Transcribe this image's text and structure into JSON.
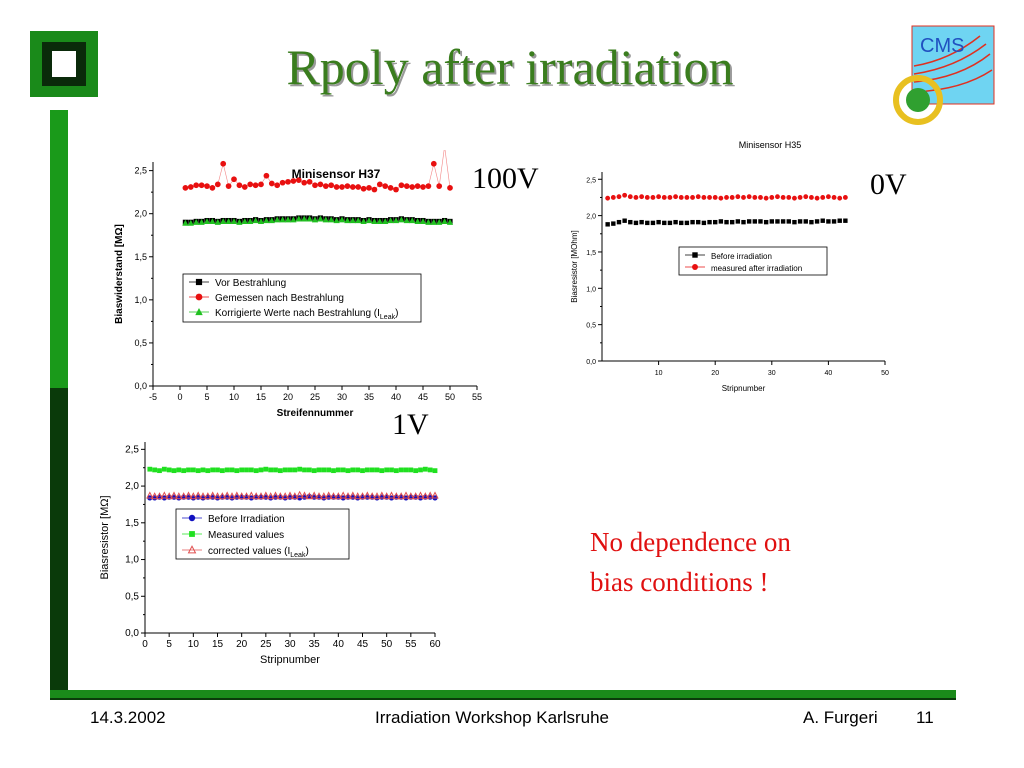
{
  "slide": {
    "title": "Rpoly after irradiation",
    "labels": {
      "v100": "100V",
      "v0": "0V",
      "v1": "1V"
    },
    "conclusion": [
      "No dependence on",
      "bias conditions !"
    ],
    "footer": {
      "date": "14.3.2002",
      "event": "Irradiation Workshop Karlsruhe",
      "author": "A. Furgeri",
      "page": "11"
    },
    "logos": {
      "cms": "CMS"
    },
    "colors": {
      "title": "#3a7d1e",
      "frame": "#1a8a1a",
      "accent_text": "#e01010"
    }
  },
  "chart_data": [
    {
      "id": "h37",
      "type": "scatter",
      "title": "Minisensor H37",
      "xlabel": "Streifennummer",
      "ylabel": "Biaswiderstand [MΩ]",
      "xlim": [
        -5,
        55
      ],
      "ylim": [
        0,
        2.6
      ],
      "xticks": [
        -5,
        0,
        5,
        10,
        15,
        20,
        25,
        30,
        35,
        40,
        45,
        50,
        55
      ],
      "yticks": [
        0.0,
        0.5,
        1.0,
        1.5,
        2.0,
        2.5
      ],
      "tick_labels_y": [
        "0,0",
        "0,5",
        "1,0",
        "1,5",
        "2,0",
        "2,5"
      ],
      "legend": "center-left",
      "series": [
        {
          "name": "Vor Bestrahlung",
          "marker": "square",
          "color": "#000000",
          "line": false,
          "x": [
            1,
            2,
            3,
            4,
            5,
            6,
            7,
            8,
            9,
            10,
            11,
            12,
            13,
            14,
            15,
            16,
            17,
            18,
            19,
            20,
            21,
            22,
            23,
            24,
            25,
            26,
            27,
            28,
            29,
            30,
            31,
            32,
            33,
            34,
            35,
            36,
            37,
            38,
            39,
            40,
            41,
            42,
            43,
            44,
            45,
            46,
            47,
            48,
            49,
            50
          ],
          "y": [
            1.9,
            1.9,
            1.91,
            1.91,
            1.92,
            1.92,
            1.91,
            1.92,
            1.92,
            1.92,
            1.91,
            1.92,
            1.92,
            1.93,
            1.92,
            1.93,
            1.93,
            1.94,
            1.94,
            1.94,
            1.94,
            1.95,
            1.95,
            1.95,
            1.94,
            1.95,
            1.94,
            1.94,
            1.93,
            1.94,
            1.93,
            1.93,
            1.93,
            1.92,
            1.93,
            1.92,
            1.92,
            1.92,
            1.93,
            1.93,
            1.94,
            1.93,
            1.93,
            1.92,
            1.92,
            1.91,
            1.91,
            1.91,
            1.92,
            1.91
          ]
        },
        {
          "name": "Gemessen nach Bestrahlung",
          "marker": "circle",
          "color": "#e81010",
          "line": true,
          "x": [
            1,
            2,
            3,
            4,
            5,
            6,
            7,
            8,
            9,
            10,
            11,
            12,
            13,
            14,
            15,
            16,
            17,
            18,
            19,
            20,
            21,
            22,
            23,
            24,
            25,
            26,
            27,
            28,
            29,
            30,
            31,
            32,
            33,
            34,
            35,
            36,
            37,
            38,
            39,
            40,
            41,
            42,
            43,
            44,
            45,
            46,
            47,
            48,
            49,
            50
          ],
          "y": [
            2.3,
            2.31,
            2.33,
            2.33,
            2.32,
            2.3,
            2.34,
            2.58,
            2.32,
            2.4,
            2.33,
            2.31,
            2.34,
            2.33,
            2.34,
            2.44,
            2.35,
            2.33,
            2.36,
            2.37,
            2.38,
            2.39,
            2.36,
            2.37,
            2.33,
            2.34,
            2.32,
            2.33,
            2.31,
            2.31,
            2.32,
            2.31,
            2.31,
            2.29,
            2.3,
            2.28,
            2.34,
            2.32,
            2.3,
            2.28,
            2.33,
            2.32,
            2.31,
            2.32,
            2.31,
            2.32,
            2.58,
            2.32,
            2.78,
            2.3
          ]
        },
        {
          "name": "Korrigierte Werte nach Bestrahlung (I",
          "name_sub": "Leak",
          "name_tail": ")",
          "marker": "triangle",
          "color": "#20c020",
          "line": false,
          "x": [
            1,
            2,
            3,
            4,
            5,
            6,
            7,
            8,
            9,
            10,
            11,
            12,
            13,
            14,
            15,
            16,
            17,
            18,
            19,
            20,
            21,
            22,
            23,
            24,
            25,
            26,
            27,
            28,
            29,
            30,
            31,
            32,
            33,
            34,
            35,
            36,
            37,
            38,
            39,
            40,
            41,
            42,
            43,
            44,
            45,
            46,
            47,
            48,
            49,
            50
          ],
          "y": [
            1.89,
            1.89,
            1.9,
            1.9,
            1.91,
            1.91,
            1.9,
            1.91,
            1.91,
            1.91,
            1.9,
            1.91,
            1.91,
            1.92,
            1.91,
            1.92,
            1.92,
            1.93,
            1.93,
            1.93,
            1.93,
            1.94,
            1.94,
            1.94,
            1.93,
            1.94,
            1.93,
            1.93,
            1.92,
            1.93,
            1.92,
            1.92,
            1.92,
            1.91,
            1.92,
            1.91,
            1.91,
            1.91,
            1.92,
            1.92,
            1.93,
            1.92,
            1.92,
            1.91,
            1.91,
            1.9,
            1.9,
            1.9,
            1.91,
            1.9
          ]
        }
      ]
    },
    {
      "id": "h35",
      "type": "scatter",
      "title": "Minisensor H35",
      "xlabel": "Stripnumber",
      "ylabel": "Biasresistor [MOhm]",
      "xlim": [
        0,
        50
      ],
      "ylim": [
        0,
        2.6
      ],
      "xticks": [
        10,
        20,
        30,
        40,
        50
      ],
      "yticks": [
        0.0,
        0.5,
        1.0,
        1.5,
        2.0,
        2.5
      ],
      "tick_labels_y": [
        "0,0",
        "0,5",
        "1,0",
        "1,5",
        "2,0",
        "2,5"
      ],
      "legend": "center-right",
      "series": [
        {
          "name": "Before irradiation",
          "marker": "square",
          "color": "#000000",
          "line": false,
          "x": [
            1,
            2,
            3,
            4,
            5,
            6,
            7,
            8,
            9,
            10,
            11,
            12,
            13,
            14,
            15,
            16,
            17,
            18,
            19,
            20,
            21,
            22,
            23,
            24,
            25,
            26,
            27,
            28,
            29,
            30,
            31,
            32,
            33,
            34,
            35,
            36,
            37,
            38,
            39,
            40,
            41,
            42,
            43
          ],
          "y": [
            1.88,
            1.89,
            1.91,
            1.93,
            1.91,
            1.9,
            1.91,
            1.9,
            1.9,
            1.91,
            1.9,
            1.9,
            1.91,
            1.9,
            1.9,
            1.91,
            1.91,
            1.9,
            1.91,
            1.91,
            1.92,
            1.91,
            1.91,
            1.92,
            1.91,
            1.92,
            1.92,
            1.92,
            1.91,
            1.92,
            1.92,
            1.92,
            1.92,
            1.91,
            1.92,
            1.92,
            1.91,
            1.92,
            1.93,
            1.92,
            1.92,
            1.93,
            1.93
          ]
        },
        {
          "name": "measured after irradiation",
          "marker": "circle",
          "color": "#e81010",
          "line": false,
          "x": [
            1,
            2,
            3,
            4,
            5,
            6,
            7,
            8,
            9,
            10,
            11,
            12,
            13,
            14,
            15,
            16,
            17,
            18,
            19,
            20,
            21,
            22,
            23,
            24,
            25,
            26,
            27,
            28,
            29,
            30,
            31,
            32,
            33,
            34,
            35,
            36,
            37,
            38,
            39,
            40,
            41,
            42,
            43
          ],
          "y": [
            2.24,
            2.25,
            2.26,
            2.28,
            2.26,
            2.25,
            2.26,
            2.25,
            2.25,
            2.26,
            2.25,
            2.25,
            2.26,
            2.25,
            2.25,
            2.25,
            2.26,
            2.25,
            2.25,
            2.25,
            2.24,
            2.25,
            2.25,
            2.26,
            2.25,
            2.26,
            2.25,
            2.25,
            2.24,
            2.25,
            2.26,
            2.25,
            2.25,
            2.24,
            2.25,
            2.26,
            2.25,
            2.24,
            2.25,
            2.26,
            2.25,
            2.24,
            2.25
          ]
        }
      ]
    },
    {
      "id": "v1",
      "type": "scatter",
      "title": "",
      "xlabel": "Stripnumber",
      "ylabel": "Biasresistor [MΩ]",
      "xlim": [
        0,
        60
      ],
      "ylim": [
        0,
        2.6
      ],
      "xticks": [
        0,
        5,
        10,
        15,
        20,
        25,
        30,
        35,
        40,
        45,
        50,
        55,
        60
      ],
      "yticks": [
        0.0,
        0.5,
        1.0,
        1.5,
        2.0,
        2.5
      ],
      "tick_labels_y": [
        "0,0",
        "0,5",
        "1,0",
        "1,5",
        "2,0",
        "2,5"
      ],
      "legend": "center-left",
      "series": [
        {
          "name": "Before Irradiation",
          "marker": "circle",
          "color": "#1010c0",
          "line": true,
          "x": [
            1,
            2,
            3,
            4,
            5,
            6,
            7,
            8,
            9,
            10,
            11,
            12,
            13,
            14,
            15,
            16,
            17,
            18,
            19,
            20,
            21,
            22,
            23,
            24,
            25,
            26,
            27,
            28,
            29,
            30,
            31,
            32,
            33,
            34,
            35,
            36,
            37,
            38,
            39,
            40,
            41,
            42,
            43,
            44,
            45,
            46,
            47,
            48,
            49,
            50,
            51,
            52,
            53,
            54,
            55,
            56,
            57,
            58,
            59,
            60
          ],
          "y": [
            1.84,
            1.84,
            1.85,
            1.84,
            1.85,
            1.85,
            1.84,
            1.85,
            1.85,
            1.84,
            1.85,
            1.84,
            1.85,
            1.85,
            1.84,
            1.85,
            1.85,
            1.84,
            1.85,
            1.85,
            1.85,
            1.84,
            1.85,
            1.85,
            1.85,
            1.84,
            1.85,
            1.85,
            1.84,
            1.85,
            1.85,
            1.84,
            1.85,
            1.86,
            1.85,
            1.85,
            1.84,
            1.85,
            1.85,
            1.85,
            1.84,
            1.85,
            1.85,
            1.84,
            1.85,
            1.85,
            1.85,
            1.84,
            1.85,
            1.85,
            1.84,
            1.85,
            1.85,
            1.84,
            1.85,
            1.85,
            1.84,
            1.85,
            1.85,
            1.84
          ]
        },
        {
          "name": "Measured values",
          "marker": "square",
          "color": "#20e020",
          "line": true,
          "x": [
            1,
            2,
            3,
            4,
            5,
            6,
            7,
            8,
            9,
            10,
            11,
            12,
            13,
            14,
            15,
            16,
            17,
            18,
            19,
            20,
            21,
            22,
            23,
            24,
            25,
            26,
            27,
            28,
            29,
            30,
            31,
            32,
            33,
            34,
            35,
            36,
            37,
            38,
            39,
            40,
            41,
            42,
            43,
            44,
            45,
            46,
            47,
            48,
            49,
            50,
            51,
            52,
            53,
            54,
            55,
            56,
            57,
            58,
            59,
            60
          ],
          "y": [
            2.23,
            2.22,
            2.21,
            2.23,
            2.22,
            2.21,
            2.22,
            2.21,
            2.22,
            2.22,
            2.21,
            2.22,
            2.21,
            2.22,
            2.22,
            2.21,
            2.22,
            2.22,
            2.21,
            2.22,
            2.22,
            2.22,
            2.21,
            2.22,
            2.23,
            2.22,
            2.22,
            2.21,
            2.22,
            2.22,
            2.22,
            2.23,
            2.22,
            2.22,
            2.21,
            2.22,
            2.22,
            2.22,
            2.21,
            2.22,
            2.22,
            2.21,
            2.22,
            2.22,
            2.21,
            2.22,
            2.22,
            2.22,
            2.21,
            2.22,
            2.22,
            2.21,
            2.22,
            2.22,
            2.22,
            2.21,
            2.22,
            2.23,
            2.22,
            2.21
          ]
        },
        {
          "name": "corrected values (I",
          "name_sub": "Leak",
          "name_tail": ")",
          "marker": "triangle-open",
          "color": "#e05050",
          "line": true,
          "x": [
            1,
            2,
            3,
            4,
            5,
            6,
            7,
            8,
            9,
            10,
            11,
            12,
            13,
            14,
            15,
            16,
            17,
            18,
            19,
            20,
            21,
            22,
            23,
            24,
            25,
            26,
            27,
            28,
            29,
            30,
            31,
            32,
            33,
            34,
            35,
            36,
            37,
            38,
            39,
            40,
            41,
            42,
            43,
            44,
            45,
            46,
            47,
            48,
            49,
            50,
            51,
            52,
            53,
            54,
            55,
            56,
            57,
            58,
            59,
            60
          ],
          "y": [
            1.87,
            1.86,
            1.86,
            1.87,
            1.86,
            1.87,
            1.86,
            1.86,
            1.87,
            1.86,
            1.87,
            1.86,
            1.86,
            1.87,
            1.86,
            1.86,
            1.87,
            1.86,
            1.87,
            1.86,
            1.86,
            1.87,
            1.86,
            1.86,
            1.87,
            1.86,
            1.87,
            1.86,
            1.86,
            1.87,
            1.86,
            1.88,
            1.87,
            1.86,
            1.87,
            1.86,
            1.86,
            1.87,
            1.86,
            1.86,
            1.87,
            1.86,
            1.87,
            1.86,
            1.86,
            1.87,
            1.86,
            1.86,
            1.87,
            1.86,
            1.87,
            1.86,
            1.86,
            1.87,
            1.86,
            1.86,
            1.87,
            1.86,
            1.87,
            1.87
          ]
        }
      ]
    }
  ]
}
